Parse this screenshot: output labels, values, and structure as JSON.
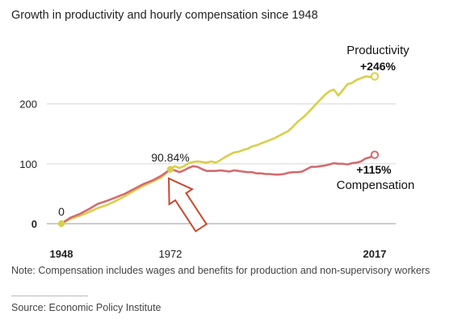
{
  "chart_data": {
    "type": "line",
    "title": "Growth in productivity and hourly compensation since 1948",
    "xlabel": "",
    "ylabel": "",
    "xlim": [
      1948,
      2017
    ],
    "ylim": [
      -10,
      260
    ],
    "grid": true,
    "yticks": [
      {
        "value": 0,
        "label": "0"
      },
      {
        "value": 100,
        "label": "100"
      },
      {
        "value": 200,
        "label": "200"
      }
    ],
    "xticks": [
      {
        "value": 1948,
        "label": "1948"
      },
      {
        "value": 1972,
        "label": "1972"
      },
      {
        "value": 2017,
        "label": "2017"
      }
    ],
    "series": [
      {
        "name": "Productivity",
        "color": "#d9cf4a",
        "end_label": "+246%",
        "x": [
          1948,
          1950,
          1952,
          1954,
          1956,
          1958,
          1960,
          1962,
          1964,
          1966,
          1968,
          1970,
          1972,
          1973,
          1974,
          1975,
          1976,
          1977,
          1978,
          1979,
          1980,
          1981,
          1982,
          1983,
          1984,
          1985,
          1986,
          1987,
          1988,
          1989,
          1990,
          1991,
          1992,
          1993,
          1994,
          1995,
          1996,
          1997,
          1998,
          1999,
          2000,
          2001,
          2002,
          2003,
          2004,
          2005,
          2006,
          2007,
          2008,
          2009,
          2010,
          2011,
          2012,
          2013,
          2014,
          2015,
          2016,
          2017
        ],
        "y": [
          0,
          8,
          13,
          19,
          26,
          31,
          38,
          46,
          55,
          63,
          70,
          77,
          90.84,
          96,
          93,
          96,
          101,
          103,
          104,
          103,
          102,
          104,
          102,
          106,
          111,
          115,
          119,
          120,
          123,
          125,
          129,
          131,
          134,
          137,
          140,
          143,
          147,
          151,
          155,
          162,
          170,
          176,
          183,
          191,
          199,
          207,
          215,
          221,
          224,
          214,
          223,
          233,
          235,
          240,
          243,
          246,
          245,
          246
        ]
      },
      {
        "name": "Compensation",
        "color": "#d46b6e",
        "end_label": "+115%",
        "x": [
          1948,
          1950,
          1952,
          1954,
          1956,
          1958,
          1960,
          1962,
          1964,
          1966,
          1968,
          1970,
          1972,
          1973,
          1974,
          1975,
          1976,
          1977,
          1978,
          1979,
          1980,
          1981,
          1982,
          1983,
          1984,
          1985,
          1986,
          1987,
          1988,
          1989,
          1990,
          1991,
          1992,
          1993,
          1994,
          1995,
          1996,
          1997,
          1998,
          1999,
          2000,
          2001,
          2002,
          2003,
          2004,
          2005,
          2006,
          2007,
          2008,
          2009,
          2010,
          2011,
          2012,
          2013,
          2014,
          2015,
          2016,
          2017
        ],
        "y": [
          0,
          10,
          16,
          24,
          33,
          38,
          44,
          50,
          58,
          66,
          72,
          80,
          91,
          89,
          86,
          89,
          93,
          96,
          95,
          91,
          88,
          88,
          88,
          89,
          88,
          87,
          89,
          88,
          87,
          86,
          86,
          84,
          84,
          83,
          83,
          82,
          82,
          83,
          85,
          86,
          86,
          87,
          91,
          95,
          95,
          96,
          97,
          99,
          101,
          100,
          100,
          99,
          101,
          102,
          104,
          109,
          111,
          115
        ]
      }
    ],
    "annotations": [
      {
        "text": "0",
        "x": 1948,
        "y": 0
      },
      {
        "text": "90.84%",
        "x": 1972,
        "y": 90.84
      }
    ],
    "series_labels": {
      "productivity_name": "Productivity",
      "productivity_value": "+246%",
      "compensation_value": "+115%",
      "compensation_name": "Compensation"
    }
  },
  "note": "Note: Compensation includes wages and benefits for production and non-supervisory workers",
  "source": "Source: Economic Policy Institute",
  "arrow_color": "#c9482e"
}
